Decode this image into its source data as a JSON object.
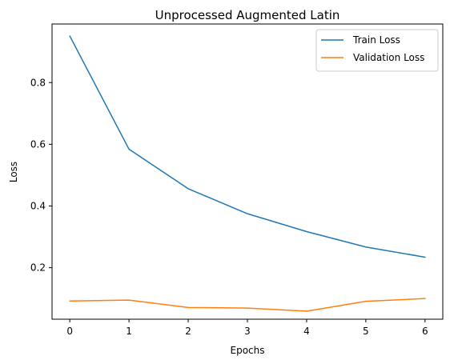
{
  "chart_data": {
    "type": "line",
    "title": "Unprocessed Augmented Latin",
    "xlabel": "Epochs",
    "ylabel": "Loss",
    "x": [
      0,
      1,
      2,
      3,
      4,
      5,
      6
    ],
    "xlim": [
      -0.3,
      6.3
    ],
    "ylim": [
      0.033,
      0.99
    ],
    "xticks": [
      0,
      1,
      2,
      3,
      4,
      5,
      6
    ],
    "yticks": [
      0.2,
      0.4,
      0.6,
      0.8
    ],
    "ytick_labels": [
      "0.2",
      "0.4",
      "0.6",
      "0.8"
    ],
    "grid": false,
    "legend_position": "top-right",
    "series": [
      {
        "name": "Train Loss",
        "color": "#1f77b4",
        "values": [
          0.951,
          0.584,
          0.456,
          0.375,
          0.317,
          0.267,
          0.234
        ]
      },
      {
        "name": "Validation Loss",
        "color": "#ff7f0e",
        "values": [
          0.092,
          0.095,
          0.071,
          0.069,
          0.059,
          0.091,
          0.1
        ]
      }
    ]
  }
}
